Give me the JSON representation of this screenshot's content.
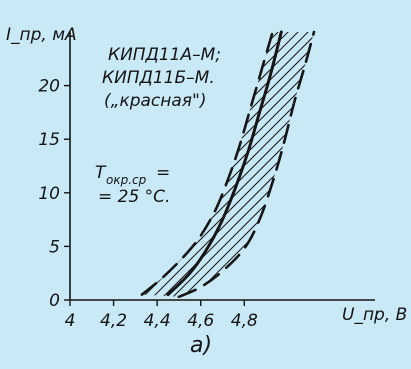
{
  "chart_data": {
    "type": "line",
    "title": "",
    "xlabel": "U_пр, В",
    "ylabel": "I_пр, мА",
    "xlim": [
      4.0,
      5.4
    ],
    "ylim": [
      0,
      25
    ],
    "x_ticks": [
      {
        "value": 4.0,
        "label": "4"
      },
      {
        "value": 4.2,
        "label": "4,2"
      },
      {
        "value": 4.4,
        "label": "4,4"
      },
      {
        "value": 4.6,
        "label": "4,6"
      },
      {
        "value": 4.8,
        "label": "4,8"
      }
    ],
    "y_ticks": [
      {
        "value": 0,
        "label": "0"
      },
      {
        "value": 5,
        "label": "5"
      },
      {
        "value": 10,
        "label": "10"
      },
      {
        "value": 15,
        "label": "15"
      },
      {
        "value": 20,
        "label": "20"
      }
    ],
    "grid": false,
    "series": [
      {
        "role": "lower-boundary",
        "style": "dashed",
        "points": [
          [
            4.33,
            0.5
          ],
          [
            4.42,
            2
          ],
          [
            4.52,
            4
          ],
          [
            4.6,
            6
          ],
          [
            4.67,
            8.5
          ],
          [
            4.73,
            11.5
          ],
          [
            4.78,
            14.5
          ],
          [
            4.83,
            18
          ],
          [
            4.88,
            21.5
          ],
          [
            4.93,
            25
          ]
        ]
      },
      {
        "role": "typical",
        "style": "solid",
        "points": [
          [
            4.45,
            0.5
          ],
          [
            4.55,
            2.5
          ],
          [
            4.63,
            4.8
          ],
          [
            4.7,
            7.5
          ],
          [
            4.76,
            10.5
          ],
          [
            4.82,
            14
          ],
          [
            4.87,
            17.5
          ],
          [
            4.92,
            21
          ],
          [
            4.97,
            25
          ]
        ]
      },
      {
        "role": "upper-boundary",
        "style": "dashed",
        "points": [
          [
            4.5,
            0.3
          ],
          [
            4.6,
            1.2
          ],
          [
            4.7,
            2.7
          ],
          [
            4.8,
            4.8
          ],
          [
            4.87,
            7.5
          ],
          [
            4.93,
            11
          ],
          [
            4.98,
            14.5
          ],
          [
            5.03,
            18.5
          ],
          [
            5.08,
            22
          ],
          [
            5.12,
            25
          ]
        ]
      }
    ],
    "annotations": [
      "КИПД11А–М;",
      "КИПД11Б–М.",
      "(„красная\")",
      "T",
      "окр.ср",
      " =",
      "= 25 °С."
    ],
    "panel_label": "а)"
  }
}
